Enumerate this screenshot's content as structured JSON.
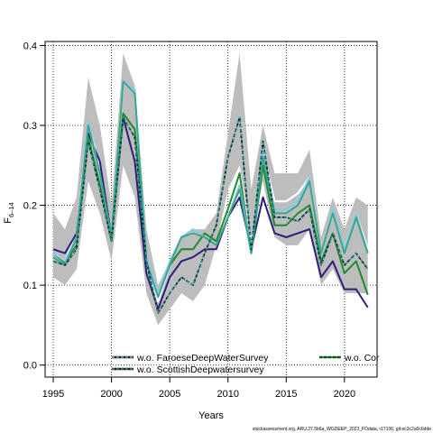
{
  "chart_data": {
    "type": "line",
    "title": "",
    "xlabel": "Years",
    "ylabel": "F",
    "ylabel_subscript": "6–14",
    "xlim": [
      1994.3,
      2022.8
    ],
    "ylim": [
      -0.015,
      0.405
    ],
    "xticks": [
      1995,
      2000,
      2005,
      2010,
      2015,
      2020
    ],
    "xtick_labels": [
      "1995",
      "2000",
      "2005",
      "2010",
      "2015",
      "2020"
    ],
    "yticks": [
      0.0,
      0.1,
      0.2,
      0.3,
      0.4
    ],
    "ytick_labels": [
      "0.0",
      "0.1",
      "0.2",
      "0.3",
      "0.4"
    ],
    "grid": true,
    "legend_position": "bottom",
    "x": [
      1995,
      1996,
      1997,
      1998,
      1999,
      2000,
      2001,
      2002,
      2003,
      2004,
      2005,
      2006,
      2007,
      2008,
      2009,
      2010,
      2011,
      2012,
      2013,
      2014,
      2015,
      2016,
      2017,
      2018,
      2019,
      2020,
      2021,
      2022
    ],
    "band": {
      "lower": [
        0.11,
        0.1,
        0.12,
        0.23,
        0.19,
        0.13,
        0.25,
        0.21,
        0.09,
        0.05,
        0.07,
        0.09,
        0.08,
        0.1,
        0.15,
        0.22,
        0.25,
        0.16,
        0.23,
        0.16,
        0.15,
        0.15,
        0.17,
        0.1,
        0.12,
        0.09,
        0.09,
        0.09
      ],
      "upper": [
        0.19,
        0.17,
        0.21,
        0.36,
        0.3,
        0.2,
        0.39,
        0.35,
        0.17,
        0.1,
        0.13,
        0.16,
        0.17,
        0.17,
        0.19,
        0.29,
        0.39,
        0.22,
        0.3,
        0.24,
        0.24,
        0.24,
        0.27,
        0.16,
        0.21,
        0.17,
        0.21,
        0.2
      ]
    },
    "series": [
      {
        "name": "",
        "color": "#ffffff",
        "width": 2.2,
        "dash": "none",
        "values": [
          0.14,
          0.13,
          0.165,
          0.3,
          0.25,
          0.155,
          0.355,
          0.34,
          0.13,
          0.08,
          0.125,
          0.16,
          0.165,
          0.16,
          0.15,
          0.185,
          0.225,
          0.145,
          0.265,
          0.205,
          0.205,
          0.215,
          0.235,
          0.14,
          0.19,
          0.145,
          0.19,
          0.145
        ]
      },
      {
        "name": "",
        "color": "#2b1e7e",
        "width": 2,
        "dash": "none",
        "values": [
          0.145,
          0.14,
          0.165,
          0.29,
          0.255,
          0.16,
          0.31,
          0.255,
          0.115,
          0.07,
          0.11,
          0.13,
          0.135,
          0.145,
          0.145,
          0.185,
          0.21,
          0.145,
          0.21,
          0.165,
          0.16,
          0.165,
          0.17,
          0.11,
          0.13,
          0.095,
          0.095,
          0.072
        ]
      },
      {
        "name": "",
        "color": "#1f8a2e",
        "width": 2,
        "dash": "none",
        "values": [
          0.14,
          0.128,
          0.15,
          0.285,
          0.225,
          0.155,
          0.315,
          0.295,
          0.13,
          0.09,
          0.125,
          0.145,
          0.145,
          0.165,
          0.155,
          0.195,
          0.24,
          0.14,
          0.25,
          0.175,
          0.175,
          0.19,
          0.2,
          0.13,
          0.165,
          0.115,
          0.13,
          0.088
        ]
      },
      {
        "name": "",
        "color": "#86c9e6",
        "width": 2,
        "dash": "none",
        "values": [
          0.14,
          0.13,
          0.16,
          0.305,
          0.24,
          0.16,
          0.355,
          0.345,
          0.135,
          0.09,
          0.13,
          0.16,
          0.17,
          0.16,
          0.15,
          0.185,
          0.225,
          0.145,
          0.265,
          0.195,
          0.195,
          0.205,
          0.235,
          0.14,
          0.195,
          0.145,
          0.19,
          0.14
        ]
      },
      {
        "name": "",
        "color": "#3aa68e",
        "width": 2,
        "dash": "none",
        "values": [
          0.135,
          0.125,
          0.16,
          0.3,
          0.24,
          0.16,
          0.355,
          0.34,
          0.13,
          0.085,
          0.125,
          0.16,
          0.165,
          0.16,
          0.15,
          0.185,
          0.22,
          0.14,
          0.26,
          0.19,
          0.19,
          0.2,
          0.23,
          0.14,
          0.19,
          0.14,
          0.185,
          0.14
        ]
      },
      {
        "name": "",
        "color": "#1a1a1a",
        "width": 1.8,
        "dash": "4,2",
        "values": [
          0.13,
          0.125,
          0.145,
          0.28,
          0.22,
          0.155,
          0.31,
          0.285,
          0.13,
          0.065,
          0.09,
          0.11,
          0.1,
          0.14,
          0.175,
          0.26,
          0.31,
          0.145,
          0.28,
          0.185,
          0.185,
          0.18,
          0.195,
          0.125,
          0.165,
          0.125,
          0.14,
          0.12
        ]
      },
      {
        "name": "",
        "color": "#1aa0a0",
        "width": 1.2,
        "dash": "3,2",
        "values": [
          0.13,
          0.125,
          0.145,
          0.28,
          0.22,
          0.155,
          0.31,
          0.285,
          0.13,
          0.065,
          0.09,
          0.11,
          0.1,
          0.14,
          0.175,
          0.26,
          0.31,
          0.145,
          0.28,
          0.185,
          0.185,
          0.18,
          0.195,
          0.125,
          0.165,
          0.125,
          0.14,
          0.12
        ]
      }
    ],
    "legend": [
      {
        "label": "w.o. FaroeseDeepWaterSurvey",
        "color": "#1a1a1a",
        "dash_color": "#86c9e6"
      },
      {
        "label": "w.o. ScottishDeepwatersurvey",
        "color": "#1a1a1a",
        "dash_color": "#3aa68e"
      },
      {
        "label": "w.o. Cor",
        "color": "#1f8a2e",
        "dash_color": "#1a1a1a"
      }
    ],
    "source": "stockassessment.org, ARU.27.5b6a_WGDEEP_2023_FOdata, r17106, git:ec2c2a0c6dde"
  }
}
